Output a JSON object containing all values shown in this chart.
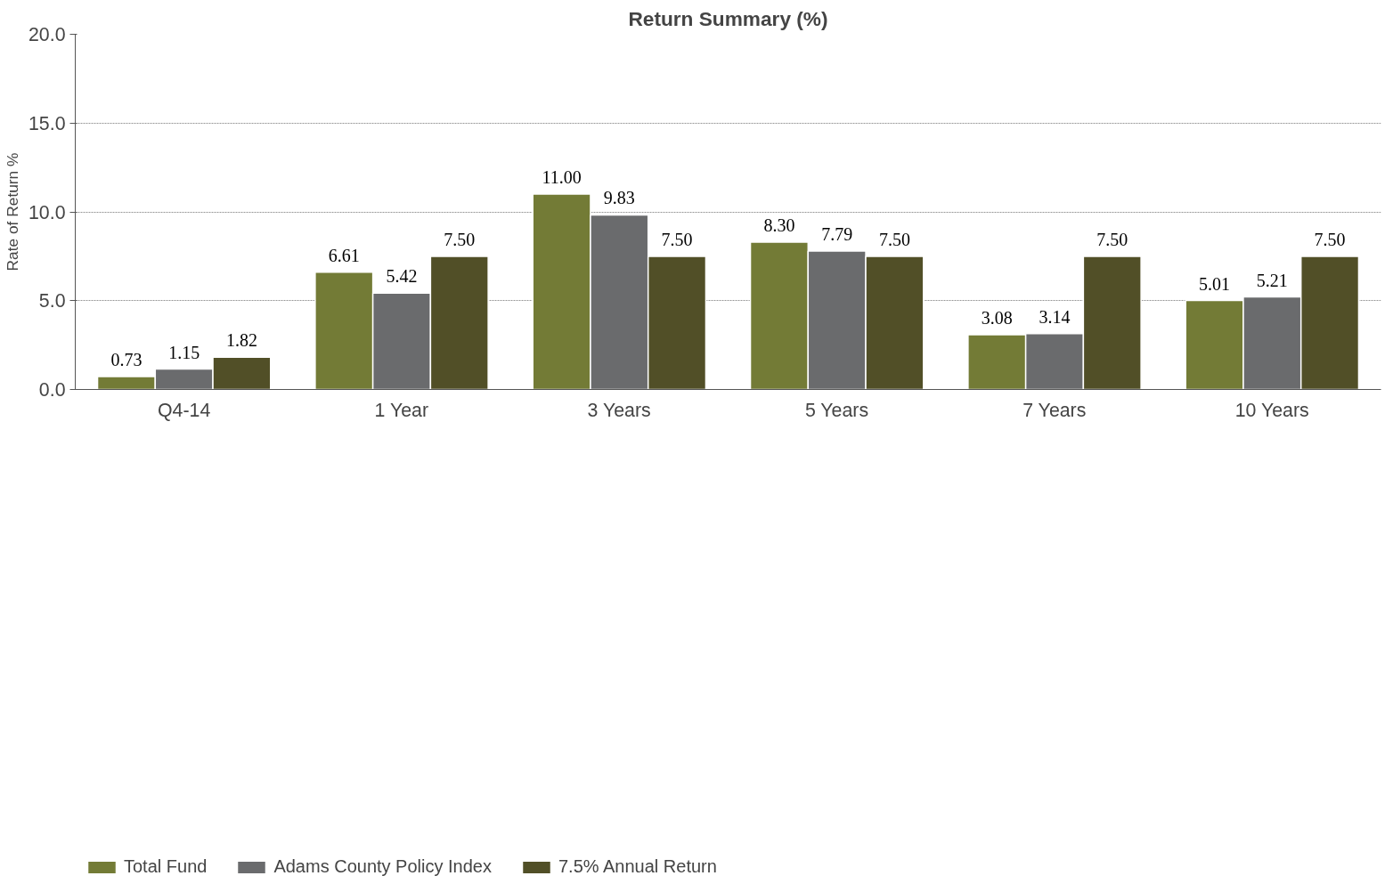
{
  "chart_data": {
    "type": "bar",
    "title": "Return Summary (%)",
    "ylabel": "Rate of Return %",
    "categories": [
      "Q4-14",
      "1 Year",
      "3 Years",
      "5 Years",
      "7 Years",
      "10 Years"
    ],
    "series": [
      {
        "name": "Total Fund",
        "color": "#737b36",
        "values": [
          0.73,
          6.61,
          11.0,
          8.3,
          3.08,
          5.01
        ]
      },
      {
        "name": "Adams County Policy Index",
        "color": "#6a6b6d",
        "values": [
          1.15,
          5.42,
          9.83,
          7.79,
          3.14,
          5.21
        ]
      },
      {
        "name": "7.5% Annual Return",
        "color": "#514f27",
        "values": [
          1.82,
          7.5,
          7.5,
          7.5,
          7.5,
          7.5
        ]
      }
    ],
    "value_labels": [
      [
        "0.73",
        "6.61",
        "11.00",
        "8.30",
        "3.08",
        "5.01"
      ],
      [
        "1.15",
        "5.42",
        "9.83",
        "7.79",
        "3.14",
        "5.21"
      ],
      [
        "1.82",
        "7.50",
        "7.50",
        "7.50",
        "7.50",
        "7.50"
      ]
    ],
    "ylim": [
      0,
      20
    ],
    "yticks": [
      {
        "value": 0,
        "label": "0.0"
      },
      {
        "value": 5,
        "label": "5.0"
      },
      {
        "value": 10,
        "label": "10.0"
      },
      {
        "value": 15,
        "label": "15.0"
      },
      {
        "value": 20,
        "label": "20.0"
      }
    ],
    "grid": "y",
    "legend": "bottom"
  }
}
